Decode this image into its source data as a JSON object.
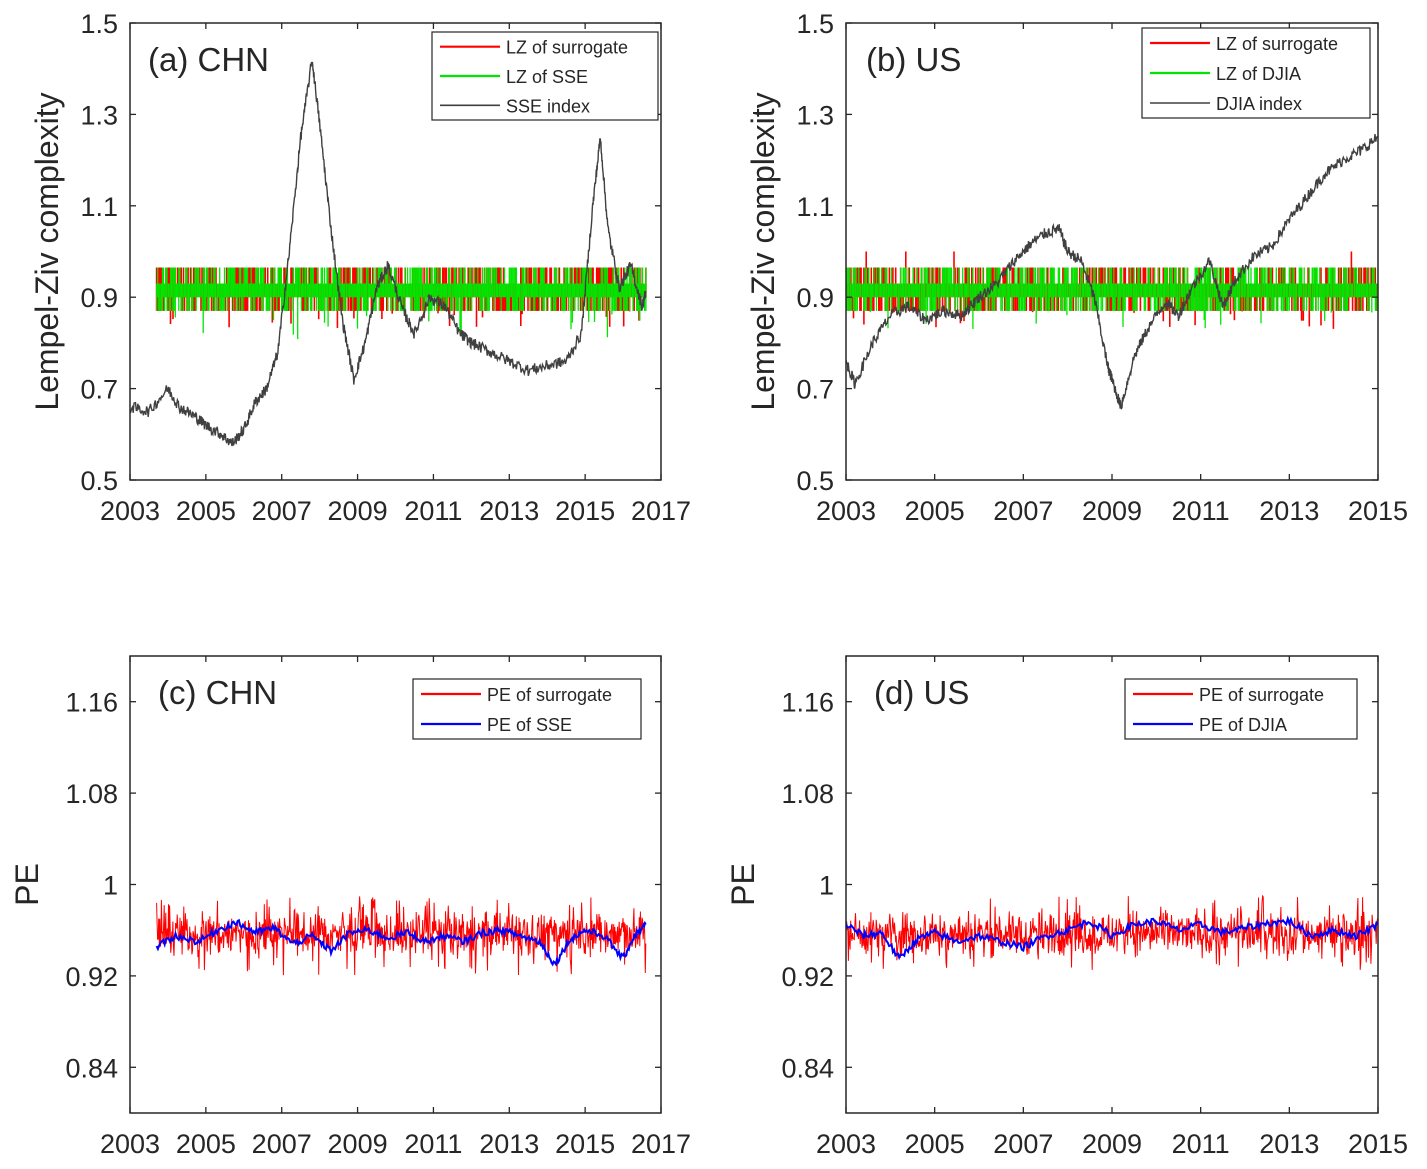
{
  "figure": {
    "colors": {
      "surrogate": "#ff0000",
      "lz_original": "#00e600",
      "index_line": "#404040",
      "pe_original": "#0000ff",
      "axis": "#262626"
    }
  },
  "chart_data": [
    {
      "id": "a",
      "type": "line",
      "title": "(a) CHN",
      "xlabel": "",
      "ylabel": "Lempel-Ziv complexity",
      "xlim": [
        2003,
        2017
      ],
      "ylim": [
        0.5,
        1.5
      ],
      "xticks": [
        2003,
        2005,
        2007,
        2009,
        2011,
        2013,
        2015,
        2017
      ],
      "xtick_labels": [
        "2003",
        "2005",
        "2007",
        "2009",
        "2011",
        "2013",
        "2015",
        "2017"
      ],
      "yticks": [
        0.5,
        0.7,
        0.9,
        1.1,
        1.3,
        1.5
      ],
      "ytick_labels": [
        "0.5",
        "0.7",
        "0.9",
        "1.1",
        "1.3",
        "1.5"
      ],
      "legend_position": "top-right",
      "series": [
        {
          "name": "LZ of surrogate",
          "kind": "band",
          "color_key": "surrogate",
          "x_range": [
            2003.7,
            2016.6
          ],
          "levels": [
            0.87,
            0.9,
            0.93,
            0.965
          ],
          "min": 0.83,
          "max": 0.965
        },
        {
          "name": "LZ of SSE",
          "kind": "band",
          "color_key": "lz_original",
          "x_range": [
            2003.7,
            2016.6
          ],
          "levels": [
            0.87,
            0.9,
            0.93,
            0.965
          ],
          "min": 0.8,
          "max": 0.965
        },
        {
          "name": "SSE index",
          "kind": "line",
          "color_key": "index_line",
          "x": [
            2003.0,
            2003.5,
            2004.0,
            2004.3,
            2004.7,
            2005.0,
            2005.4,
            2005.7,
            2006.0,
            2006.3,
            2006.6,
            2006.9,
            2007.2,
            2007.5,
            2007.8,
            2008.0,
            2008.3,
            2008.6,
            2008.9,
            2009.2,
            2009.5,
            2009.8,
            2010.2,
            2010.5,
            2010.9,
            2011.3,
            2011.7,
            2012.0,
            2012.5,
            2013.0,
            2013.5,
            2014.0,
            2014.5,
            2014.9,
            2015.2,
            2015.4,
            2015.6,
            2015.9,
            2016.2,
            2016.5,
            2016.6
          ],
          "y": [
            0.66,
            0.65,
            0.7,
            0.66,
            0.64,
            0.62,
            0.6,
            0.58,
            0.61,
            0.67,
            0.7,
            0.78,
            1.0,
            1.25,
            1.42,
            1.28,
            1.05,
            0.85,
            0.72,
            0.8,
            0.92,
            0.97,
            0.87,
            0.82,
            0.9,
            0.88,
            0.82,
            0.8,
            0.78,
            0.76,
            0.74,
            0.75,
            0.76,
            0.82,
            1.1,
            1.25,
            1.05,
            0.92,
            0.97,
            0.88,
            0.91
          ]
        }
      ]
    },
    {
      "id": "b",
      "type": "line",
      "title": "(b) US",
      "xlabel": "",
      "ylabel": "Lempel-Ziv complexity",
      "xlim": [
        2003,
        2015
      ],
      "ylim": [
        0.5,
        1.5
      ],
      "xticks": [
        2003,
        2005,
        2007,
        2009,
        2011,
        2013,
        2015
      ],
      "xtick_labels": [
        "2003",
        "2005",
        "2007",
        "2009",
        "2011",
        "2013",
        "2015"
      ],
      "yticks": [
        0.5,
        0.7,
        0.9,
        1.1,
        1.3,
        1.5
      ],
      "ytick_labels": [
        "0.5",
        "0.7",
        "0.9",
        "1.1",
        "1.3",
        "1.5"
      ],
      "legend_position": "top-right",
      "series": [
        {
          "name": "LZ of surrogate",
          "kind": "band",
          "color_key": "surrogate",
          "x_range": [
            2003.0,
            2015.0
          ],
          "levels": [
            0.87,
            0.9,
            0.93,
            0.965
          ],
          "min": 0.83,
          "max": 1.0
        },
        {
          "name": "LZ of DJIA",
          "kind": "band",
          "color_key": "lz_original",
          "x_range": [
            2003.0,
            2015.0
          ],
          "levels": [
            0.87,
            0.9,
            0.93,
            0.965
          ],
          "min": 0.83,
          "max": 0.965
        },
        {
          "name": "DJIA index",
          "kind": "line",
          "color_key": "index_line",
          "x": [
            2003.0,
            2003.2,
            2003.6,
            2004.0,
            2004.4,
            2004.8,
            2005.2,
            2005.6,
            2006.0,
            2006.4,
            2006.8,
            2007.2,
            2007.5,
            2007.8,
            2008.0,
            2008.3,
            2008.6,
            2008.9,
            2009.0,
            2009.2,
            2009.5,
            2009.8,
            2010.2,
            2010.5,
            2010.8,
            2011.2,
            2011.5,
            2011.8,
            2012.2,
            2012.6,
            2013.0,
            2013.4,
            2013.8,
            2014.2,
            2014.6,
            2015.0
          ],
          "y": [
            0.76,
            0.71,
            0.8,
            0.86,
            0.88,
            0.85,
            0.87,
            0.86,
            0.9,
            0.93,
            0.98,
            1.02,
            1.04,
            1.05,
            1.0,
            0.98,
            0.9,
            0.75,
            0.72,
            0.66,
            0.77,
            0.83,
            0.89,
            0.86,
            0.92,
            0.98,
            0.88,
            0.94,
            0.99,
            1.01,
            1.07,
            1.12,
            1.17,
            1.2,
            1.22,
            1.25
          ]
        }
      ]
    },
    {
      "id": "c",
      "type": "line",
      "title": "(c) CHN",
      "xlabel": "",
      "ylabel": "PE",
      "xlim": [
        2003,
        2017
      ],
      "ylim": [
        0.8,
        1.2
      ],
      "xticks": [
        2003,
        2005,
        2007,
        2009,
        2011,
        2013,
        2015,
        2017
      ],
      "xtick_labels": [
        "2003",
        "2005",
        "2007",
        "2009",
        "2011",
        "2013",
        "2015",
        "2017"
      ],
      "yticks": [
        0.84,
        0.92,
        1.0,
        1.08,
        1.16
      ],
      "ytick_labels": [
        "0.84",
        "0.92",
        "1",
        "1.08",
        "1.16"
      ],
      "legend_position": "top-right",
      "series": [
        {
          "name": "PE of surrogate",
          "kind": "noise",
          "color_key": "surrogate",
          "x_range": [
            2003.7,
            2016.6
          ],
          "center": 0.957,
          "spread": 0.016,
          "min": 0.92,
          "max": 0.99
        },
        {
          "name": "PE of SSE",
          "kind": "line",
          "color_key": "pe_original",
          "x": [
            2003.7,
            2004.2,
            2004.8,
            2005.3,
            2005.8,
            2006.3,
            2006.8,
            2007.3,
            2007.8,
            2008.3,
            2008.8,
            2009.3,
            2009.8,
            2010.3,
            2010.8,
            2011.3,
            2011.8,
            2012.3,
            2012.8,
            2013.3,
            2013.8,
            2014.2,
            2014.6,
            2015.0,
            2015.5,
            2016.0,
            2016.3,
            2016.6
          ],
          "y": [
            0.945,
            0.955,
            0.95,
            0.96,
            0.967,
            0.958,
            0.962,
            0.948,
            0.955,
            0.942,
            0.958,
            0.96,
            0.953,
            0.958,
            0.95,
            0.955,
            0.95,
            0.958,
            0.96,
            0.955,
            0.95,
            0.93,
            0.952,
            0.96,
            0.955,
            0.935,
            0.955,
            0.965
          ]
        }
      ]
    },
    {
      "id": "d",
      "type": "line",
      "title": "(d) US",
      "xlabel": "",
      "ylabel": "PE",
      "xlim": [
        2003,
        2015
      ],
      "ylim": [
        0.8,
        1.2
      ],
      "xticks": [
        2003,
        2005,
        2007,
        2009,
        2011,
        2013,
        2015
      ],
      "xtick_labels": [
        "2003",
        "2005",
        "2007",
        "2009",
        "2011",
        "2013",
        "2015"
      ],
      "yticks": [
        0.84,
        0.92,
        1.0,
        1.08,
        1.16
      ],
      "ytick_labels": [
        "0.84",
        "0.92",
        "1",
        "1.08",
        "1.16"
      ],
      "legend_position": "top-right",
      "series": [
        {
          "name": "PE of surrogate",
          "kind": "noise",
          "color_key": "surrogate",
          "x_range": [
            2003.0,
            2015.0
          ],
          "center": 0.957,
          "spread": 0.015,
          "min": 0.925,
          "max": 0.99
        },
        {
          "name": "PE of DJIA",
          "kind": "line",
          "color_key": "pe_original",
          "x": [
            2003.0,
            2003.4,
            2003.8,
            2004.2,
            2004.6,
            2005.0,
            2005.5,
            2006.0,
            2006.5,
            2007.0,
            2007.5,
            2008.0,
            2008.5,
            2009.0,
            2009.5,
            2010.0,
            2010.5,
            2011.0,
            2011.5,
            2012.0,
            2012.5,
            2013.0,
            2013.5,
            2014.0,
            2014.5,
            2015.0
          ],
          "y": [
            0.965,
            0.955,
            0.958,
            0.935,
            0.952,
            0.958,
            0.95,
            0.955,
            0.95,
            0.945,
            0.955,
            0.96,
            0.968,
            0.955,
            0.965,
            0.968,
            0.96,
            0.965,
            0.958,
            0.962,
            0.966,
            0.968,
            0.955,
            0.96,
            0.955,
            0.965
          ]
        }
      ]
    }
  ]
}
